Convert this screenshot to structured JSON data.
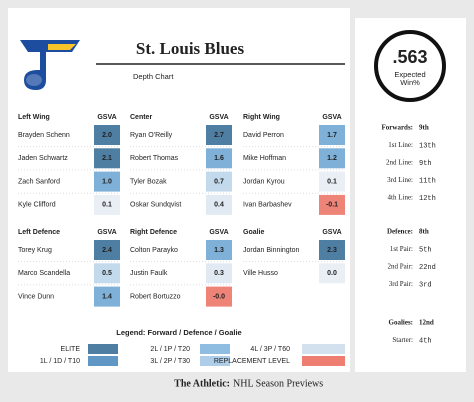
{
  "header": {
    "title": "St. Louis Blues",
    "subtitle": "Depth Chart"
  },
  "win": {
    "value": ".563",
    "label": "Expected Win%"
  },
  "groups": [
    {
      "title": "Left Wing",
      "stat": "GSVA",
      "players": [
        {
          "name": "Brayden Schenn",
          "gsva": "2.0",
          "color": "#4f7ea3"
        },
        {
          "name": "Jaden Schwartz",
          "gsva": "2.1",
          "color": "#4f7ea3"
        },
        {
          "name": "Zach Sanford",
          "gsva": "1.0",
          "color": "#7fb0d8"
        },
        {
          "name": "Kyle Clifford",
          "gsva": "0.1",
          "color": "#e9eff5"
        }
      ]
    },
    {
      "title": "Center",
      "stat": "GSVA",
      "players": [
        {
          "name": "Ryan O'Reilly",
          "gsva": "2.7",
          "color": "#4f7ea3"
        },
        {
          "name": "Robert Thomas",
          "gsva": "1.6",
          "color": "#7fb0d8"
        },
        {
          "name": "Tyler Bozak",
          "gsva": "0.7",
          "color": "#c3d9ec"
        },
        {
          "name": "Oskar Sundqvist",
          "gsva": "0.4",
          "color": "#e1eaf3"
        }
      ]
    },
    {
      "title": "Right Wing",
      "stat": "GSVA",
      "players": [
        {
          "name": "David Perron",
          "gsva": "1.7",
          "color": "#7fb0d8"
        },
        {
          "name": "Mike Hoffman",
          "gsva": "1.2",
          "color": "#7fb0d8"
        },
        {
          "name": "Jordan Kyrou",
          "gsva": "0.1",
          "color": "#e9eff5"
        },
        {
          "name": "Ivan Barbashev",
          "gsva": "-0.1",
          "color": "#ee8377"
        }
      ]
    },
    {
      "title": "Left Defence",
      "stat": "GSVA",
      "players": [
        {
          "name": "Torey Krug",
          "gsva": "2.4",
          "color": "#4f7ea3"
        },
        {
          "name": "Marco Scandella",
          "gsva": "0.5",
          "color": "#c3d9ec"
        },
        {
          "name": "Vince Dunn",
          "gsva": "1.4",
          "color": "#7fb0d8"
        }
      ]
    },
    {
      "title": "Right Defence",
      "stat": "GSVA",
      "players": [
        {
          "name": "Colton Parayko",
          "gsva": "1.3",
          "color": "#7fb0d8"
        },
        {
          "name": "Justin Faulk",
          "gsva": "0.3",
          "color": "#e1eaf3"
        },
        {
          "name": "Robert Bortuzzo",
          "gsva": "-0.0",
          "color": "#ee8377"
        }
      ]
    },
    {
      "title": "Goalie",
      "stat": "GSVA",
      "players": [
        {
          "name": "Jordan Binnington",
          "gsva": "2.3",
          "color": "#4f7ea3"
        },
        {
          "name": "Ville Husso",
          "gsva": "0.0",
          "color": "#e9eff5"
        }
      ]
    }
  ],
  "legend": {
    "title": "Legend: Forward / Defence / Goalie",
    "items": [
      {
        "label": "ELITE",
        "color": "#4f7ea3"
      },
      {
        "label": "2L / 1P / T20",
        "color": "#8fbde2"
      },
      {
        "label": "4L / 3P / T60",
        "color": "#d3e1ee"
      },
      {
        "label": "1L / 1D / T10",
        "color": "#6197c4"
      },
      {
        "label": "3L / 2P / T30",
        "color": "#adcde8"
      },
      {
        "label": "REPLACEMENT LEVEL",
        "color": "#ee7e72"
      }
    ]
  },
  "ranks": [
    {
      "title": "Forwards:",
      "rank": "9th",
      "rows": [
        {
          "label": "1st Line:",
          "value": "13th"
        },
        {
          "label": "2nd Line:",
          "value": "9th"
        },
        {
          "label": "3rd Line:",
          "value": "11th"
        },
        {
          "label": "4th Line:",
          "value": "12th"
        }
      ]
    },
    {
      "title": "Defence:",
      "rank": "8th",
      "rows": [
        {
          "label": "1st Pair:",
          "value": "5th"
        },
        {
          "label": "2nd Pair:",
          "value": "22nd"
        },
        {
          "label": "3rd Pair:",
          "value": "3rd"
        }
      ]
    },
    {
      "title": "Goalies:",
      "rank": "12nd",
      "rows": [
        {
          "label": "Starter:",
          "value": "4th"
        }
      ]
    }
  ],
  "footer": {
    "brand": "The Athletic:",
    "text": "NHL Season Previews"
  }
}
